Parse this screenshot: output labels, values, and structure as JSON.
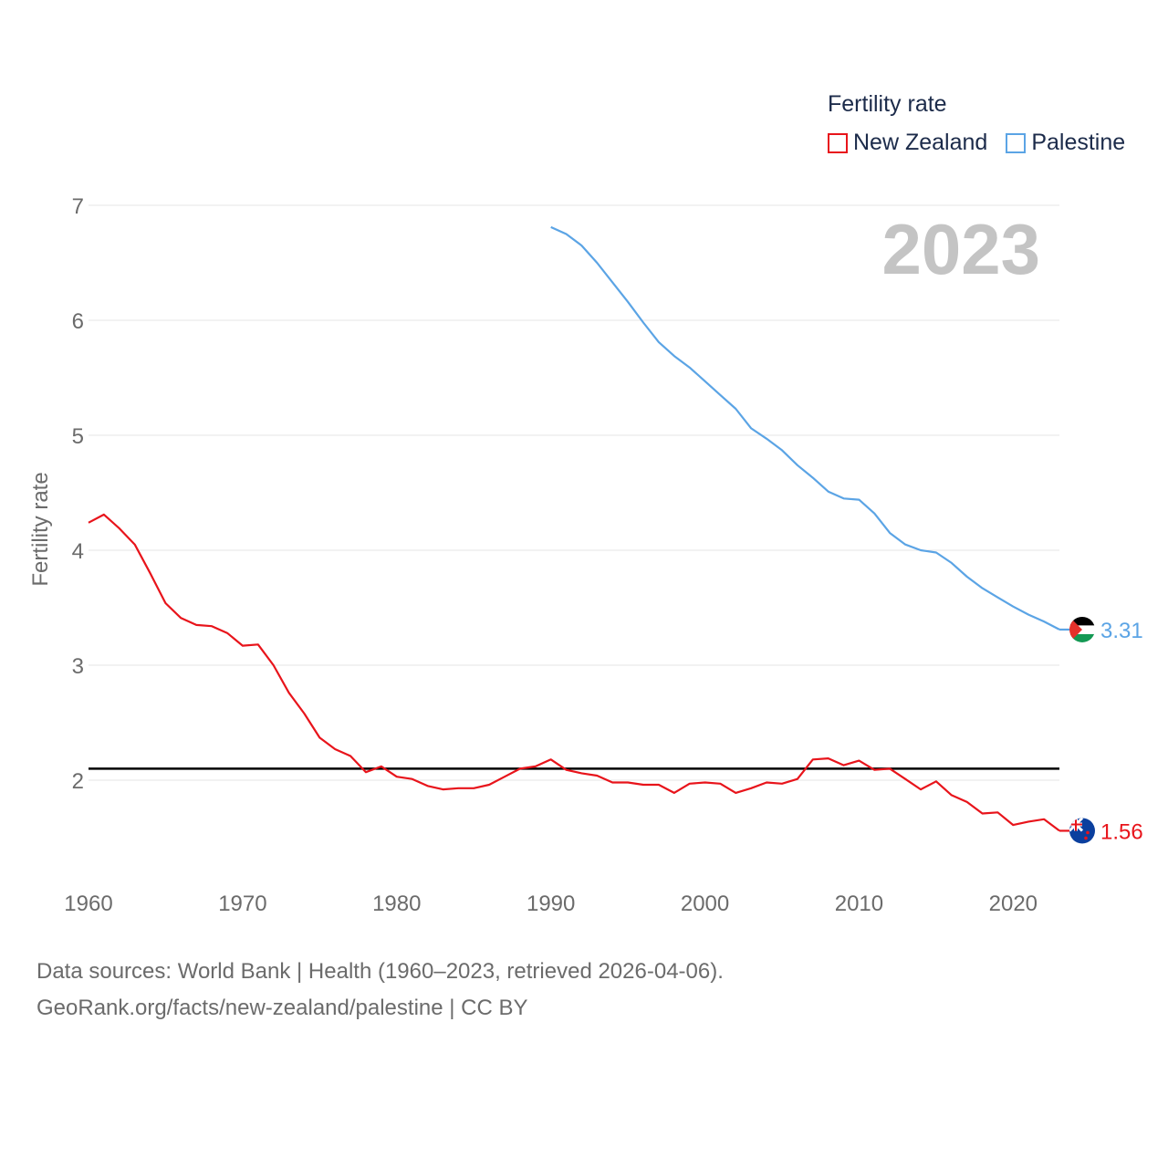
{
  "legend": {
    "title": "Fertility rate",
    "items": [
      {
        "name": "New Zealand",
        "color": "#e8141b"
      },
      {
        "name": "Palestine",
        "color": "#5ba4e5"
      }
    ]
  },
  "footer": {
    "line1": "Data sources: World Bank | Health (1960–2023, retrieved 2026-04-06).",
    "line2": "GeoRank.org/facts/new-zealand/palestine | CC BY"
  },
  "chart_data": {
    "type": "line",
    "title": "",
    "year_label": "2023",
    "xlabel": "",
    "ylabel": "Fertility rate",
    "xlim": [
      1960,
      2023
    ],
    "ylim": [
      1.3,
      7.2
    ],
    "x_ticks": [
      1960,
      1970,
      1980,
      1990,
      2000,
      2010,
      2020
    ],
    "y_ticks": [
      2,
      3,
      4,
      5,
      6,
      7
    ],
    "grid": true,
    "reference_line": {
      "value": 2.1,
      "color": "#000000"
    },
    "series": [
      {
        "name": "New Zealand",
        "color": "#e8141b",
        "end_label": "1.56",
        "flag": "new-zealand-flag",
        "x_start": 1960,
        "values": [
          4.24,
          4.31,
          4.19,
          4.05,
          3.8,
          3.54,
          3.41,
          3.35,
          3.34,
          3.28,
          3.17,
          3.18,
          3.0,
          2.76,
          2.58,
          2.37,
          2.27,
          2.21,
          2.07,
          2.12,
          2.03,
          2.01,
          1.95,
          1.92,
          1.93,
          1.93,
          1.96,
          2.03,
          2.1,
          2.12,
          2.18,
          2.09,
          2.06,
          2.04,
          1.98,
          1.98,
          1.96,
          1.96,
          1.89,
          1.97,
          1.98,
          1.97,
          1.89,
          1.93,
          1.98,
          1.97,
          2.01,
          2.18,
          2.19,
          2.13,
          2.17,
          2.09,
          2.1,
          2.01,
          1.92,
          1.99,
          1.87,
          1.81,
          1.71,
          1.72,
          1.61,
          1.64,
          1.66,
          1.56
        ]
      },
      {
        "name": "Palestine",
        "color": "#5ba4e5",
        "end_label": "3.31",
        "flag": "palestine-flag",
        "x_start": 1990,
        "values": [
          6.81,
          6.75,
          6.65,
          6.5,
          6.33,
          6.16,
          5.98,
          5.81,
          5.69,
          5.59,
          5.47,
          5.35,
          5.23,
          5.06,
          4.97,
          4.87,
          4.74,
          4.63,
          4.51,
          4.45,
          4.44,
          4.32,
          4.15,
          4.05,
          4.0,
          3.98,
          3.89,
          3.77,
          3.67,
          3.59,
          3.51,
          3.44,
          3.38,
          3.31
        ]
      }
    ]
  }
}
